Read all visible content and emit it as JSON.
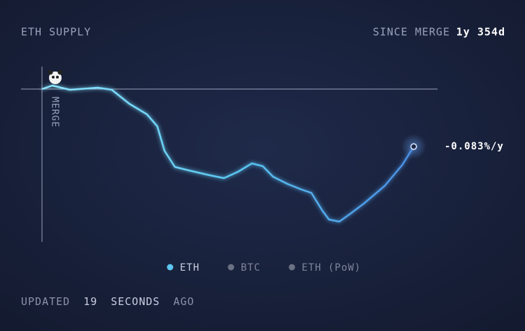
{
  "chart_data": {
    "type": "line",
    "title": "ETH SUPPLY",
    "period_label": "SINCE MERGE",
    "period": "1y 354d",
    "x": [
      0,
      20,
      54,
      108,
      135,
      169,
      203,
      223,
      237,
      257,
      284,
      325,
      352,
      379,
      406,
      427,
      447,
      474,
      501,
      521,
      542,
      555,
      575,
      596,
      623,
      663,
      697,
      719
    ],
    "series": [
      {
        "name": "ETH",
        "color": "#5cc8f2",
        "values": [
          0,
          0.01,
          -0.002,
          0.004,
          -0.002,
          -0.042,
          -0.072,
          -0.106,
          -0.176,
          -0.222,
          -0.232,
          -0.246,
          -0.254,
          -0.236,
          -0.212,
          -0.22,
          -0.25,
          -0.27,
          -0.286,
          -0.296,
          -0.346,
          -0.372,
          -0.378,
          -0.356,
          -0.326,
          -0.276,
          -0.216,
          -0.164
        ]
      }
    ],
    "inactive_series": [
      {
        "name": "BTC",
        "color": "#6b7184"
      },
      {
        "name": "ETH (PoW)",
        "color": "#6b7184"
      }
    ],
    "xlim": [
      0,
      719
    ],
    "ylim": [
      -0.4,
      0.02
    ],
    "reference_line": 0,
    "annotations": [
      {
        "label": "MERGE",
        "x": 0
      }
    ],
    "end_label": "-0.083%/y",
    "footer": {
      "prefix": "UPDATED",
      "number": "19",
      "unit": "SECONDS",
      "suffix": "AGO"
    }
  }
}
